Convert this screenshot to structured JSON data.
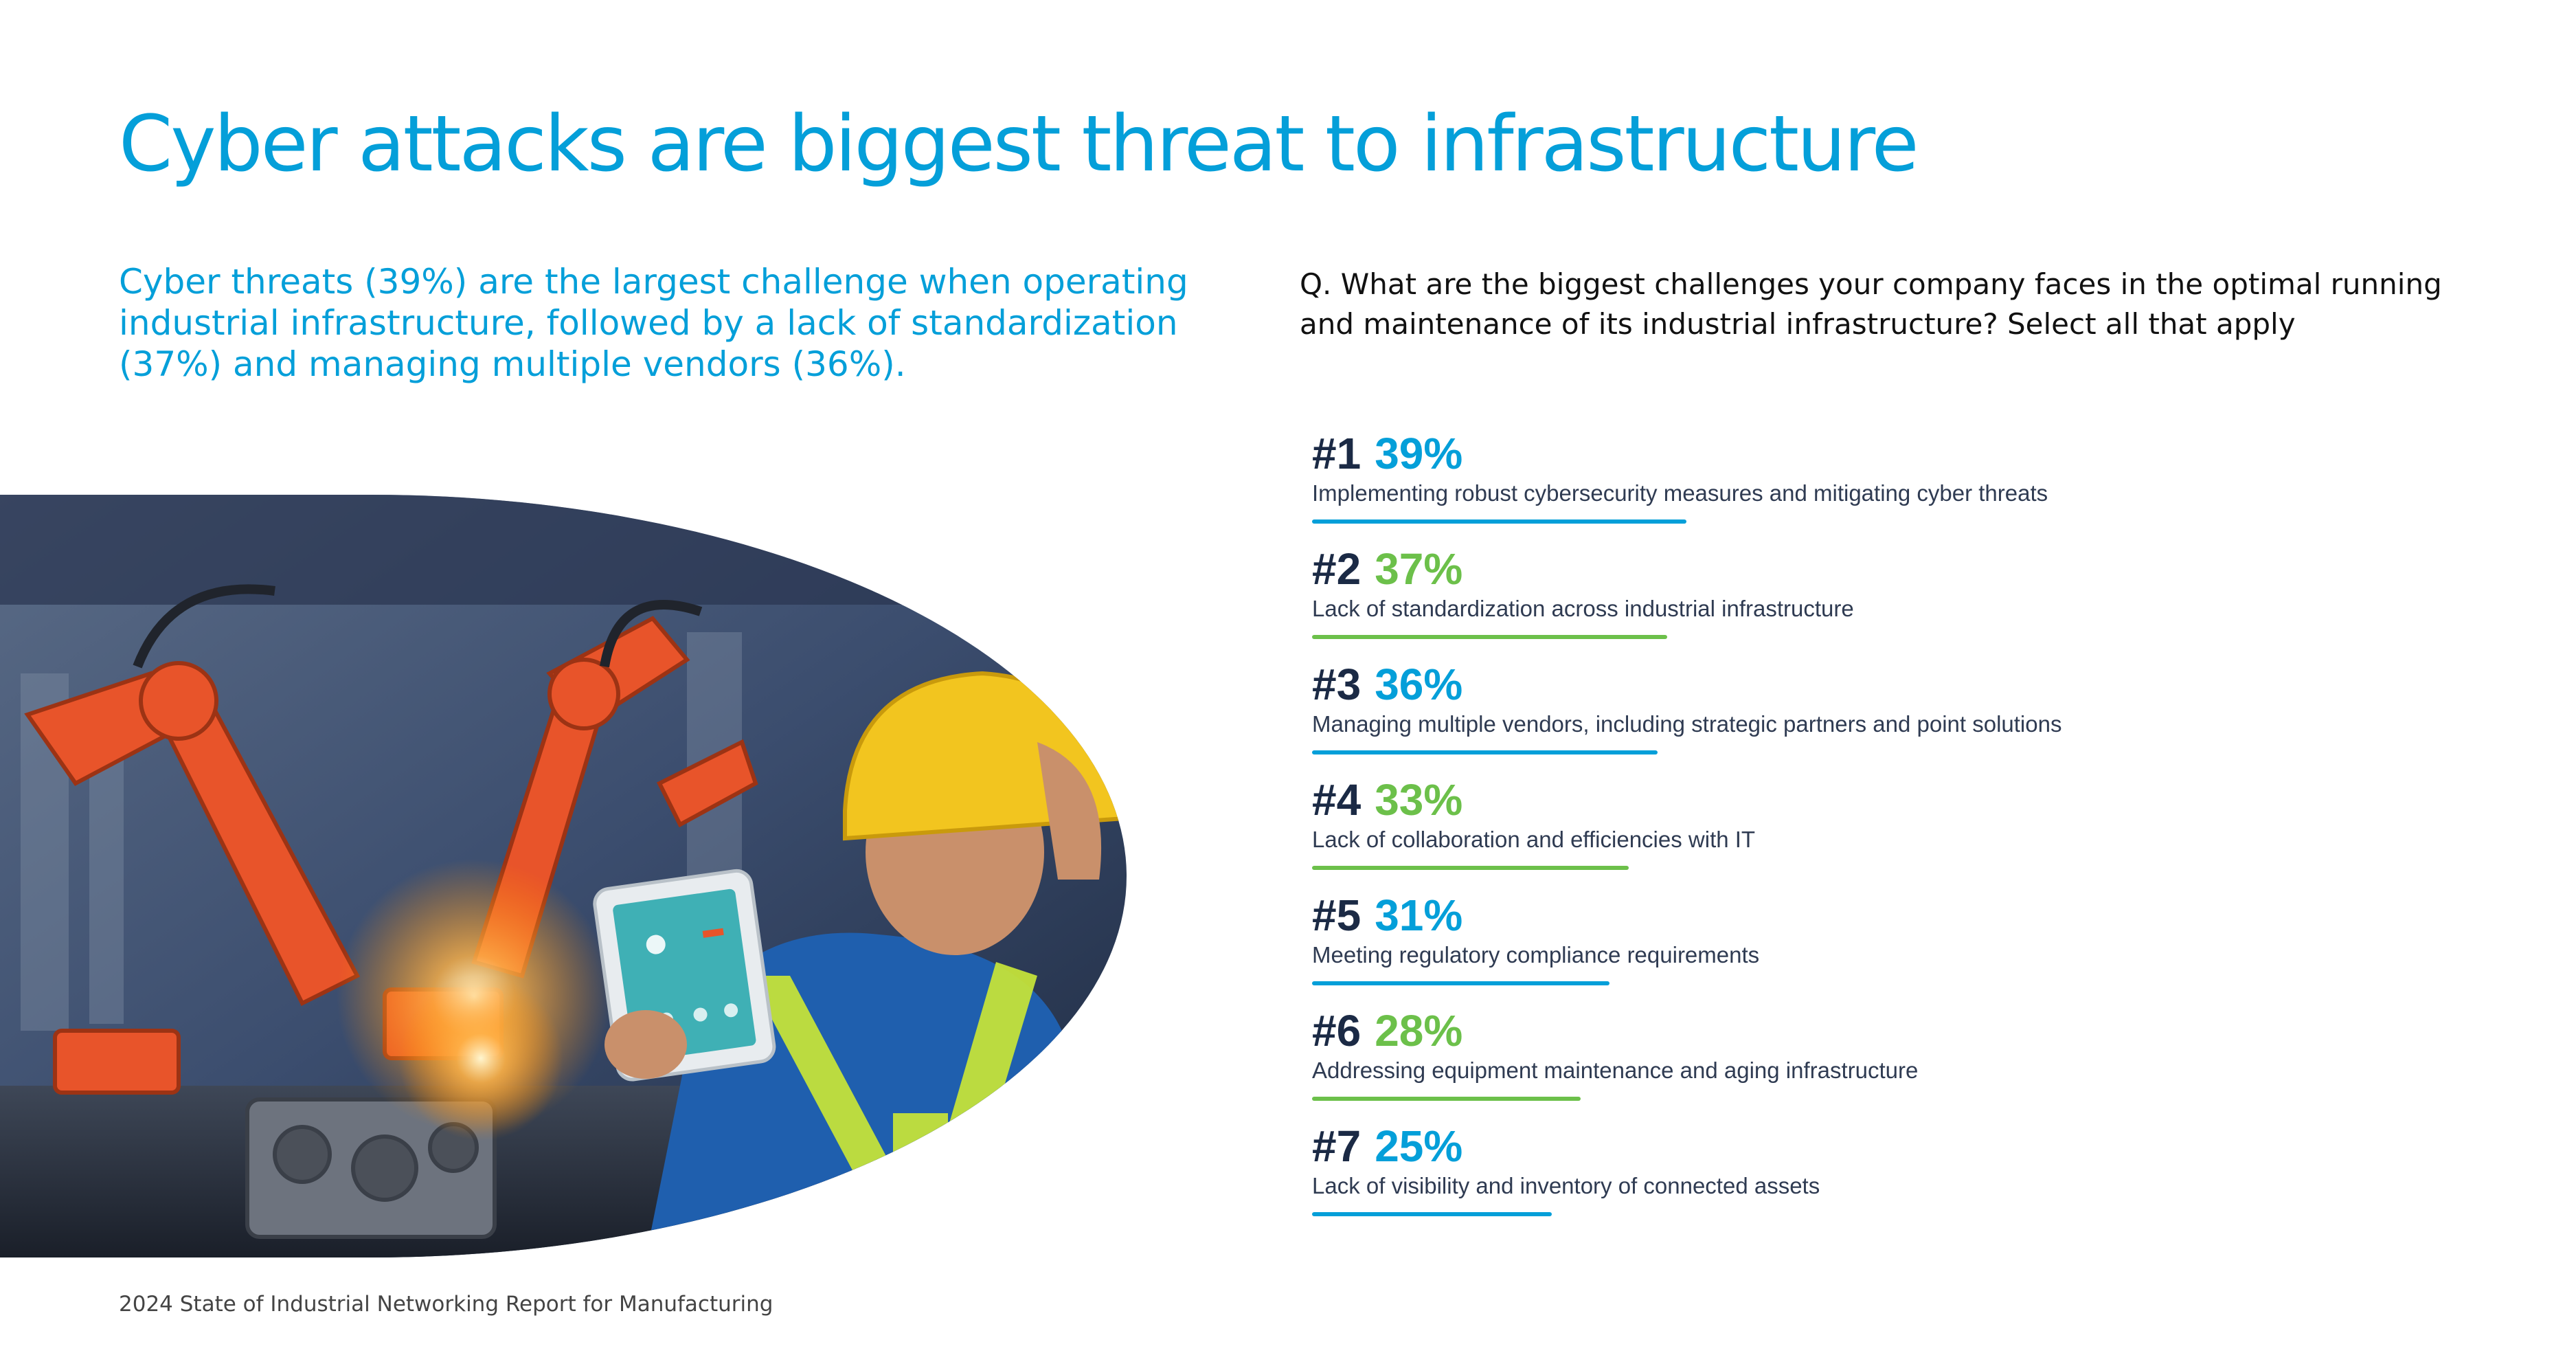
{
  "title": "Cyber attacks are biggest threat to infrastructure",
  "subtitle": "Cyber threats (39%) are the largest challenge when operating industrial infrastructure, followed by a lack of standardization (37%) and managing multiple vendors (36%).",
  "question": "Q.  What are the biggest challenges your company faces in the optimal running and maintenance of its industrial infrastructure? Select all that apply",
  "footer": "2024 State of Industrial Networking Report for Manufacturing",
  "colors": {
    "blue": "#049fd9",
    "green": "#6cc04a",
    "navy": "#1b2a45"
  },
  "challenges": [
    {
      "rank": "#1",
      "percent": "39%",
      "value": 39,
      "color": "blue",
      "label": "Implementing robust cybersecurity measures and mitigating cyber threats"
    },
    {
      "rank": "#2",
      "percent": "37%",
      "value": 37,
      "color": "green",
      "label": "Lack of standardization across industrial infrastructure"
    },
    {
      "rank": "#3",
      "percent": "36%",
      "value": 36,
      "color": "blue",
      "label": "Managing multiple vendors, including strategic partners and point solutions"
    },
    {
      "rank": "#4",
      "percent": "33%",
      "value": 33,
      "color": "green",
      "label": "Lack of collaboration and efficiencies with IT"
    },
    {
      "rank": "#5",
      "percent": "31%",
      "value": 31,
      "color": "blue",
      "label": "Meeting regulatory compliance requirements"
    },
    {
      "rank": "#6",
      "percent": "28%",
      "value": 28,
      "color": "green",
      "label": "Addressing equipment maintenance and aging infrastructure"
    },
    {
      "rank": "#7",
      "percent": "25%",
      "value": 25,
      "color": "blue",
      "label": "Lack of visibility and inventory of connected assets"
    }
  ]
}
